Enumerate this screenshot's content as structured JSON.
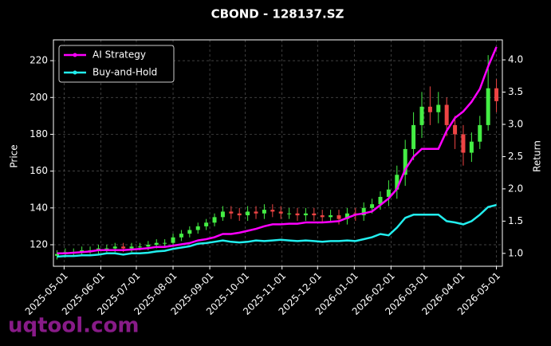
{
  "chart_data": {
    "type": "candlestick",
    "title": "CBOND - 128137.SZ",
    "ylabel": "Price",
    "y2label": "Return",
    "watermark": "uqtool.com",
    "grid": true,
    "legend": "upper left",
    "up_color": "#44ee44",
    "down_color": "#ee4444",
    "x": [
      "2025-04-25",
      "2025-05-02",
      "2025-05-09",
      "2025-05-16",
      "2025-05-23",
      "2025-05-30",
      "2025-06-06",
      "2025-06-13",
      "2025-06-20",
      "2025-06-27",
      "2025-07-04",
      "2025-07-11",
      "2025-07-18",
      "2025-07-25",
      "2025-08-01",
      "2025-08-08",
      "2025-08-15",
      "2025-08-22",
      "2025-08-29",
      "2025-09-05",
      "2025-09-12",
      "2025-09-19",
      "2025-09-26",
      "2025-10-03",
      "2025-10-10",
      "2025-10-17",
      "2025-10-24",
      "2025-10-31",
      "2025-11-07",
      "2025-11-14",
      "2025-11-21",
      "2025-11-28",
      "2025-12-05",
      "2025-12-12",
      "2025-12-19",
      "2025-12-26",
      "2026-01-02",
      "2026-01-09",
      "2026-01-16",
      "2026-01-23",
      "2026-01-30",
      "2026-02-06",
      "2026-02-13",
      "2026-02-20",
      "2026-02-27",
      "2026-03-06",
      "2026-03-13",
      "2026-03-20",
      "2026-03-27",
      "2026-04-03",
      "2026-04-10",
      "2026-04-17",
      "2026-04-24",
      "2026-05-01"
    ],
    "open": [
      114,
      115,
      116,
      116,
      117,
      117,
      118,
      118,
      119,
      118,
      119,
      119,
      120,
      121,
      121,
      124,
      126,
      128,
      130,
      132,
      135,
      138,
      137,
      136,
      138,
      137,
      139,
      138,
      137,
      137,
      136,
      137,
      136,
      135,
      136,
      134,
      137,
      136,
      140,
      142,
      146,
      150,
      158,
      172,
      185,
      195,
      192,
      196,
      185,
      180,
      170,
      176,
      185,
      205
    ],
    "high": [
      117,
      118,
      118,
      119,
      119,
      120,
      120,
      121,
      121,
      121,
      121,
      122,
      123,
      123,
      126,
      128,
      130,
      132,
      134,
      137,
      141,
      141,
      140,
      141,
      141,
      142,
      142,
      141,
      140,
      140,
      140,
      140,
      139,
      139,
      139,
      140,
      140,
      143,
      145,
      149,
      155,
      163,
      177,
      192,
      203,
      206,
      203,
      200,
      190,
      185,
      181,
      190,
      223,
      210
    ],
    "low": [
      112,
      113,
      114,
      114,
      115,
      115,
      116,
      116,
      116,
      116,
      117,
      117,
      118,
      119,
      119,
      122,
      124,
      126,
      128,
      130,
      133,
      134,
      133,
      133,
      134,
      134,
      135,
      134,
      134,
      133,
      133,
      133,
      132,
      132,
      131,
      131,
      133,
      133,
      137,
      139,
      141,
      145,
      152,
      166,
      178,
      185,
      186,
      179,
      172,
      163,
      165,
      172,
      182,
      192
    ],
    "close": [
      115,
      116,
      116,
      117,
      117,
      118,
      118,
      119,
      118,
      119,
      119,
      120,
      121,
      121,
      124,
      126,
      128,
      130,
      132,
      135,
      138,
      137,
      136,
      138,
      137,
      139,
      138,
      137,
      137,
      136,
      137,
      136,
      135,
      136,
      134,
      137,
      136,
      140,
      142,
      146,
      150,
      158,
      172,
      185,
      195,
      192,
      196,
      185,
      180,
      170,
      176,
      185,
      205,
      198
    ],
    "series": [
      {
        "name": "AI Strategy",
        "color": "#ff00ff",
        "axis": "y2",
        "values": [
          1.0,
          1.0,
          1.01,
          1.02,
          1.03,
          1.05,
          1.05,
          1.05,
          1.05,
          1.06,
          1.07,
          1.08,
          1.1,
          1.1,
          1.12,
          1.14,
          1.16,
          1.2,
          1.22,
          1.25,
          1.3,
          1.3,
          1.32,
          1.35,
          1.38,
          1.42,
          1.45,
          1.45,
          1.46,
          1.46,
          1.48,
          1.48,
          1.48,
          1.49,
          1.5,
          1.55,
          1.6,
          1.62,
          1.65,
          1.75,
          1.85,
          2.0,
          2.3,
          2.5,
          2.62,
          2.62,
          2.62,
          2.9,
          3.1,
          3.2,
          3.35,
          3.55,
          3.9,
          4.2
        ]
      },
      {
        "name": "Buy-and-Hold",
        "color": "#22eeee",
        "axis": "y2",
        "values": [
          0.95,
          0.96,
          0.96,
          0.97,
          0.97,
          0.98,
          1.0,
          1.0,
          0.98,
          1.0,
          1.0,
          1.01,
          1.03,
          1.04,
          1.07,
          1.09,
          1.11,
          1.15,
          1.16,
          1.18,
          1.2,
          1.18,
          1.17,
          1.18,
          1.2,
          1.19,
          1.2,
          1.21,
          1.2,
          1.19,
          1.2,
          1.19,
          1.18,
          1.19,
          1.19,
          1.2,
          1.19,
          1.22,
          1.25,
          1.3,
          1.28,
          1.4,
          1.55,
          1.6,
          1.6,
          1.6,
          1.6,
          1.5,
          1.48,
          1.45,
          1.5,
          1.6,
          1.72,
          1.75
        ]
      }
    ],
    "xlim": [
      "2025-04-22",
      "2026-05-06"
    ],
    "xticks": [
      "2025-05-01",
      "2025-06-01",
      "2025-07-01",
      "2025-08-01",
      "2025-09-01",
      "2025-10-01",
      "2025-11-01",
      "2025-12-01",
      "2026-01-01",
      "2026-02-01",
      "2026-03-01",
      "2026-04-01",
      "2026-05-01"
    ],
    "ylim": [
      108.3,
      231.3
    ],
    "yticks": [
      120,
      140,
      160,
      180,
      200,
      220
    ],
    "y2lim": [
      0.8,
      4.31
    ],
    "y2ticks": [
      {
        "value": 1,
        "label": "1.0"
      },
      1.5,
      {
        "value": 2,
        "label": "2.0"
      },
      2.5,
      {
        "value": 3,
        "label": "3.0"
      },
      3.5,
      {
        "value": 4,
        "label": "4.0"
      }
    ]
  }
}
